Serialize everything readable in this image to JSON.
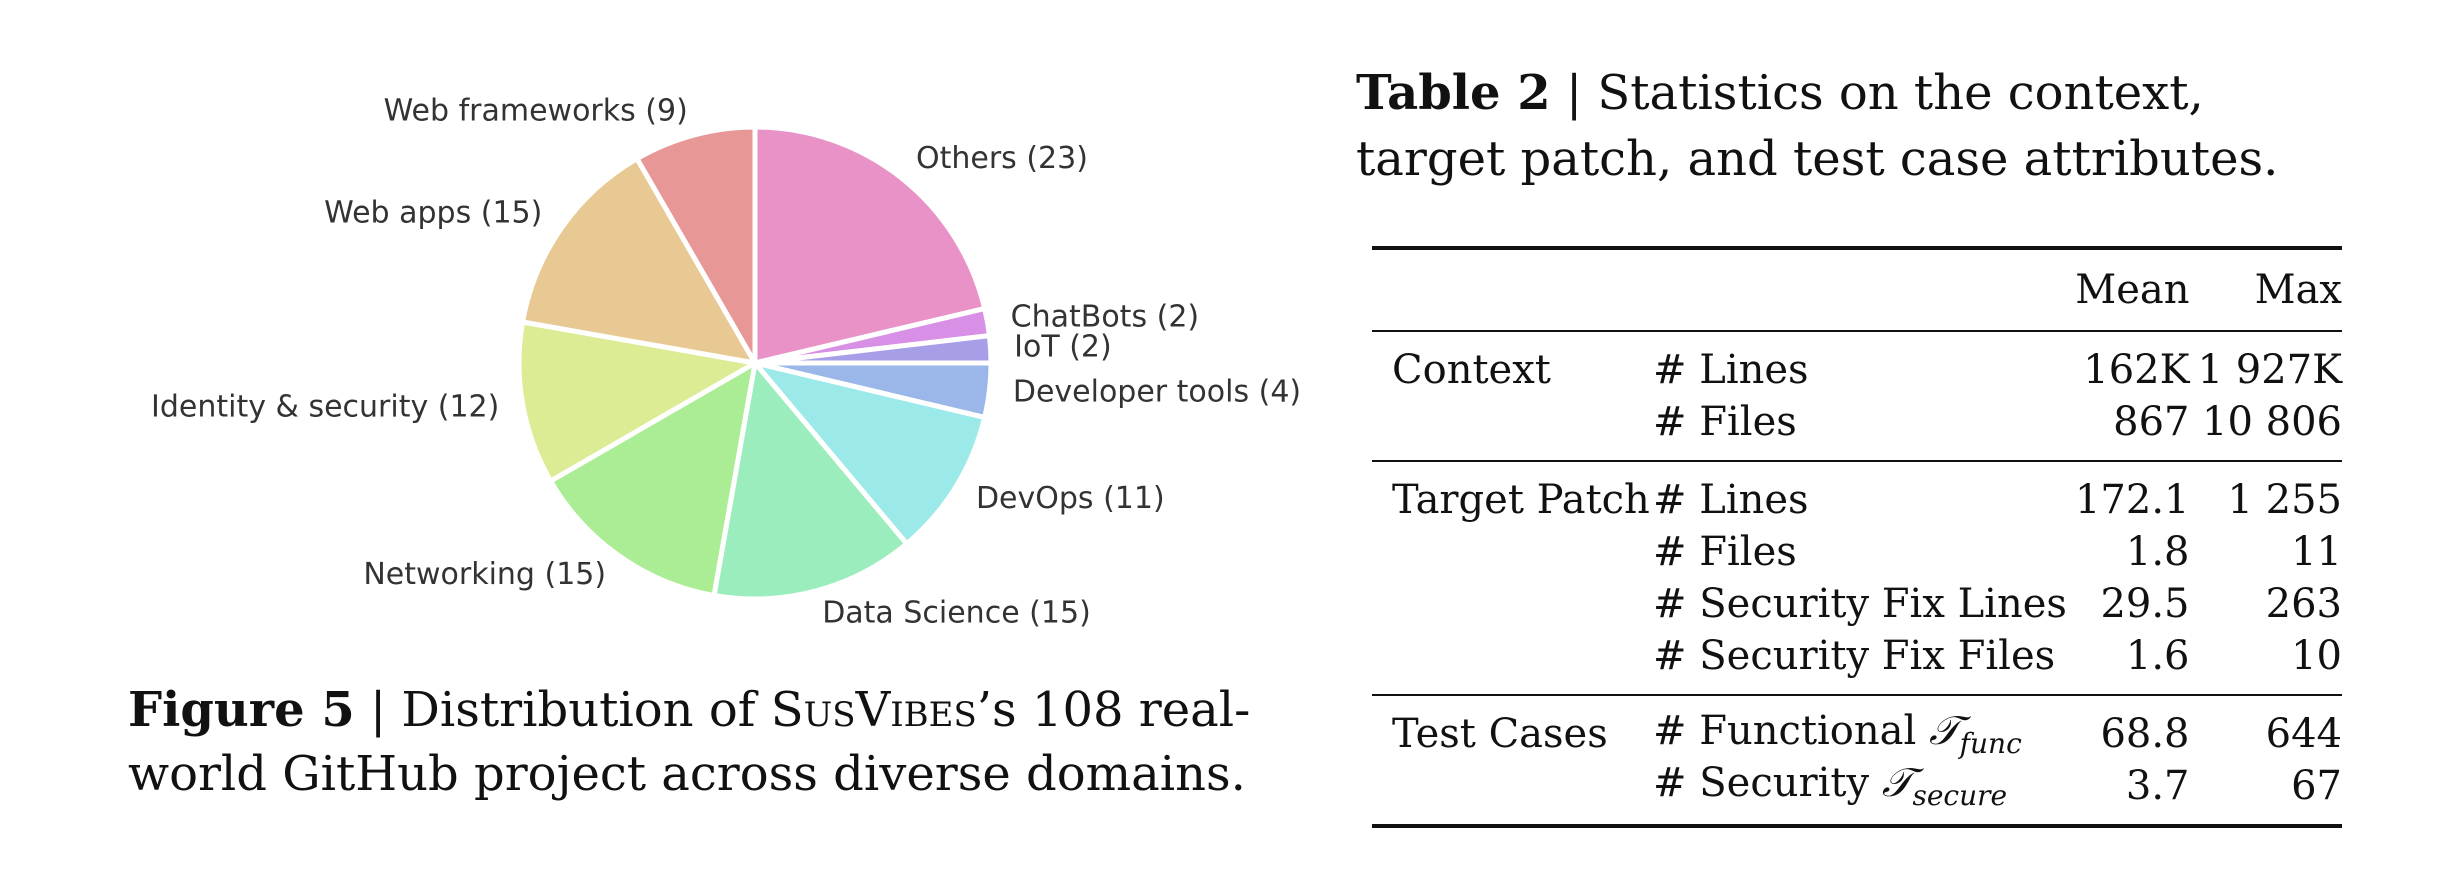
{
  "figure": {
    "label": "Figure 5",
    "caption_pre": "Distribution of ",
    "caption_brand": "SusVibes",
    "caption_post": "’s 108 real-world GitHub project across diverse domains."
  },
  "chart_data": {
    "type": "pie",
    "title": "",
    "start_angle": "12 o'clock, clockwise",
    "slices": [
      {
        "label": "Others (23)",
        "value": 23,
        "color": "#e892c8"
      },
      {
        "label": "ChatBots (2)",
        "value": 2,
        "color": "#d890e6"
      },
      {
        "label": "IoT (2)",
        "value": 2,
        "color": "#a79ee8"
      },
      {
        "label": "Developer tools (4)",
        "value": 4,
        "color": "#9bb6e9"
      },
      {
        "label": "DevOps (11)",
        "value": 11,
        "color": "#9ce9e9"
      },
      {
        "label": "Data Science (15)",
        "value": 15,
        "color": "#9cedbe"
      },
      {
        "label": "Networking (15)",
        "value": 15,
        "color": "#abed95"
      },
      {
        "label": "Identity & security (12)",
        "value": 12,
        "color": "#dcec94"
      },
      {
        "label": "Web apps (15)",
        "value": 15,
        "color": "#e9c993"
      },
      {
        "label": "Web frameworks (9)",
        "value": 9,
        "color": "#e89797"
      }
    ]
  },
  "table": {
    "label": "Table 2",
    "caption": "Statistics on the context, target patch, and test case attributes.",
    "columns": [
      "",
      "",
      "Mean",
      "Max"
    ],
    "groups": [
      {
        "name": "Context",
        "rows": [
          {
            "attr": "# Lines",
            "mean": "162K",
            "max": "1 927K"
          },
          {
            "attr": "# Files",
            "mean": "867",
            "max": "10 806"
          }
        ]
      },
      {
        "name": "Target Patch",
        "rows": [
          {
            "attr": "# Lines",
            "mean": "172.1",
            "max": "1 255"
          },
          {
            "attr": "# Files",
            "mean": "1.8",
            "max": "11"
          },
          {
            "attr": "# Security Fix Lines",
            "mean": "29.5",
            "max": "263"
          },
          {
            "attr": "# Security Fix Files",
            "mean": "1.6",
            "max": "10"
          }
        ]
      },
      {
        "name": "Test Cases",
        "rows": [
          {
            "attr": "# Functional ",
            "symbol": "𝒯",
            "subscript": "func",
            "mean": "68.8",
            "max": "644"
          },
          {
            "attr": "# Security ",
            "symbol": "𝒯",
            "subscript": "secure",
            "mean": "3.7",
            "max": "67"
          }
        ]
      }
    ]
  }
}
